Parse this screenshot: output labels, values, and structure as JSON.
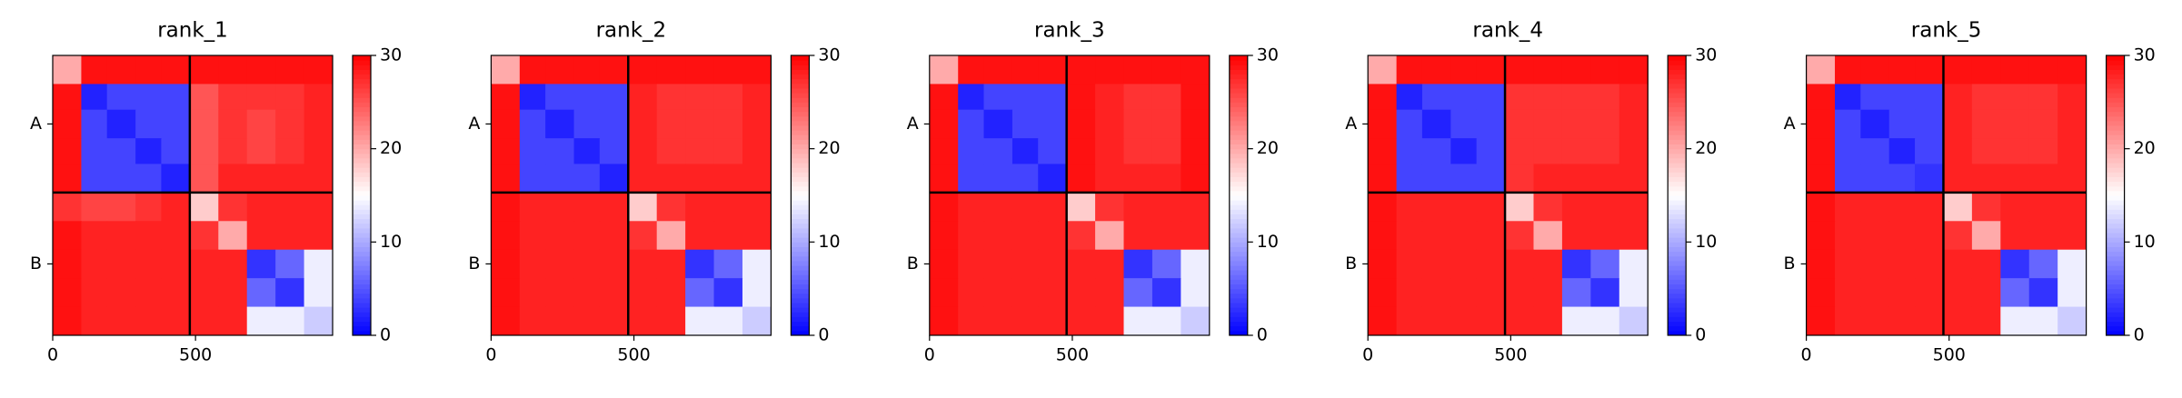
{
  "chart_data": [
    {
      "type": "heatmap",
      "title": "rank_1",
      "colormap": "bwr",
      "zlim": [
        0,
        30
      ],
      "cticks": [
        0,
        10,
        20,
        30
      ],
      "xlim": [
        0,
        980
      ],
      "xticks": [
        0,
        500
      ],
      "chains": [
        {
          "name": "A",
          "start": 0,
          "end": 480
        },
        {
          "name": "B",
          "start": 480,
          "end": 980
        }
      ],
      "edges": [
        0,
        100,
        190,
        290,
        380,
        480,
        580,
        680,
        780,
        880,
        980
      ],
      "z": [
        [
          20,
          29,
          29,
          29,
          29,
          29,
          29,
          29,
          29,
          29
        ],
        [
          29,
          2,
          4,
          4,
          4,
          25,
          27,
          27,
          27,
          28
        ],
        [
          29,
          4,
          2,
          4,
          4,
          25,
          27,
          26,
          27,
          28
        ],
        [
          29,
          4,
          4,
          2,
          4,
          25,
          27,
          26,
          27,
          28
        ],
        [
          29,
          4,
          4,
          4,
          2,
          25,
          28,
          28,
          28,
          28
        ],
        [
          27,
          26,
          26,
          27,
          28,
          18,
          27,
          28,
          28,
          28
        ],
        [
          29,
          28,
          28,
          28,
          28,
          27,
          20,
          28,
          28,
          28
        ],
        [
          29,
          28,
          28,
          28,
          28,
          28,
          28,
          3,
          6,
          14
        ],
        [
          29,
          28,
          28,
          28,
          28,
          28,
          28,
          6,
          3,
          14
        ],
        [
          29,
          28,
          28,
          28,
          28,
          28,
          28,
          14,
          14,
          12
        ]
      ]
    },
    {
      "type": "heatmap",
      "title": "rank_2",
      "colormap": "bwr",
      "zlim": [
        0,
        30
      ],
      "cticks": [
        0,
        10,
        20,
        30
      ],
      "xlim": [
        0,
        980
      ],
      "xticks": [
        0,
        500
      ],
      "chains": [
        {
          "name": "A",
          "start": 0,
          "end": 480
        },
        {
          "name": "B",
          "start": 480,
          "end": 980
        }
      ],
      "edges": [
        0,
        100,
        190,
        290,
        380,
        480,
        580,
        680,
        780,
        880,
        980
      ],
      "z": [
        [
          20,
          29,
          29,
          29,
          29,
          29,
          29,
          29,
          29,
          29
        ],
        [
          29,
          2,
          4,
          4,
          4,
          28,
          27,
          27,
          27,
          28
        ],
        [
          29,
          4,
          2,
          4,
          4,
          28,
          27,
          27,
          27,
          28
        ],
        [
          29,
          4,
          4,
          2,
          4,
          28,
          27,
          27,
          27,
          28
        ],
        [
          29,
          4,
          4,
          4,
          2,
          28,
          28,
          28,
          28,
          28
        ],
        [
          29,
          28,
          28,
          28,
          28,
          18,
          27,
          28,
          28,
          28
        ],
        [
          29,
          28,
          28,
          28,
          28,
          27,
          20,
          28,
          28,
          28
        ],
        [
          29,
          28,
          28,
          28,
          28,
          28,
          28,
          3,
          6,
          14
        ],
        [
          29,
          28,
          28,
          28,
          28,
          28,
          28,
          6,
          3,
          14
        ],
        [
          29,
          28,
          28,
          28,
          28,
          28,
          28,
          14,
          14,
          12
        ]
      ]
    },
    {
      "type": "heatmap",
      "title": "rank_3",
      "colormap": "bwr",
      "zlim": [
        0,
        30
      ],
      "cticks": [
        0,
        10,
        20,
        30
      ],
      "xlim": [
        0,
        980
      ],
      "xticks": [
        0,
        500
      ],
      "chains": [
        {
          "name": "A",
          "start": 0,
          "end": 480
        },
        {
          "name": "B",
          "start": 480,
          "end": 980
        }
      ],
      "edges": [
        0,
        100,
        190,
        290,
        380,
        480,
        580,
        680,
        780,
        880,
        980
      ],
      "z": [
        [
          20,
          29,
          29,
          29,
          29,
          29,
          29,
          29,
          29,
          29
        ],
        [
          29,
          2,
          4,
          4,
          4,
          29,
          28,
          27,
          27,
          29
        ],
        [
          29,
          4,
          2,
          4,
          4,
          29,
          28,
          27,
          27,
          29
        ],
        [
          29,
          4,
          4,
          2,
          4,
          29,
          28,
          27,
          27,
          29
        ],
        [
          29,
          4,
          4,
          4,
          2,
          29,
          28,
          28,
          28,
          29
        ],
        [
          29,
          28,
          28,
          28,
          28,
          18,
          27,
          28,
          28,
          28
        ],
        [
          29,
          28,
          28,
          28,
          28,
          27,
          20,
          28,
          28,
          28
        ],
        [
          29,
          28,
          28,
          28,
          28,
          28,
          28,
          3,
          6,
          14
        ],
        [
          29,
          28,
          28,
          28,
          28,
          28,
          28,
          6,
          3,
          14
        ],
        [
          29,
          28,
          28,
          28,
          28,
          28,
          28,
          14,
          14,
          12
        ]
      ]
    },
    {
      "type": "heatmap",
      "title": "rank_4",
      "colormap": "bwr",
      "zlim": [
        0,
        30
      ],
      "cticks": [
        0,
        10,
        20,
        30
      ],
      "xlim": [
        0,
        980
      ],
      "xticks": [
        0,
        500
      ],
      "chains": [
        {
          "name": "A",
          "start": 0,
          "end": 480
        },
        {
          "name": "B",
          "start": 480,
          "end": 980
        }
      ],
      "edges": [
        0,
        100,
        190,
        290,
        380,
        480,
        580,
        680,
        780,
        880,
        980
      ],
      "z": [
        [
          20,
          29,
          29,
          29,
          29,
          29,
          29,
          29,
          29,
          29
        ],
        [
          29,
          2,
          4,
          4,
          4,
          27,
          27,
          27,
          27,
          28
        ],
        [
          29,
          4,
          2,
          4,
          4,
          27,
          27,
          27,
          27,
          28
        ],
        [
          29,
          4,
          4,
          2,
          4,
          27,
          27,
          27,
          27,
          28
        ],
        [
          29,
          4,
          4,
          4,
          4,
          27,
          28,
          28,
          28,
          28
        ],
        [
          29,
          28,
          28,
          28,
          28,
          18,
          27,
          28,
          28,
          28
        ],
        [
          29,
          28,
          28,
          28,
          28,
          27,
          20,
          28,
          28,
          28
        ],
        [
          29,
          28,
          28,
          28,
          28,
          28,
          28,
          3,
          6,
          14
        ],
        [
          29,
          28,
          28,
          28,
          28,
          28,
          28,
          6,
          3,
          14
        ],
        [
          29,
          28,
          28,
          28,
          28,
          28,
          28,
          14,
          14,
          12
        ]
      ]
    },
    {
      "type": "heatmap",
      "title": "rank_5",
      "colormap": "bwr",
      "zlim": [
        0,
        30
      ],
      "cticks": [
        0,
        10,
        20,
        30
      ],
      "xlim": [
        0,
        980
      ],
      "xticks": [
        0,
        500
      ],
      "chains": [
        {
          "name": "A",
          "start": 0,
          "end": 480
        },
        {
          "name": "B",
          "start": 480,
          "end": 980
        }
      ],
      "edges": [
        0,
        100,
        190,
        290,
        380,
        480,
        580,
        680,
        780,
        880,
        980
      ],
      "z": [
        [
          20,
          29,
          29,
          29,
          29,
          29,
          29,
          29,
          29,
          29
        ],
        [
          29,
          2,
          4,
          4,
          4,
          28,
          27,
          27,
          27,
          28
        ],
        [
          29,
          4,
          2,
          4,
          4,
          28,
          27,
          27,
          27,
          28
        ],
        [
          29,
          4,
          4,
          2,
          4,
          28,
          27,
          27,
          27,
          28
        ],
        [
          29,
          4,
          4,
          4,
          3,
          28,
          28,
          28,
          28,
          28
        ],
        [
          29,
          28,
          28,
          28,
          28,
          18,
          27,
          28,
          28,
          28
        ],
        [
          29,
          28,
          28,
          28,
          28,
          27,
          20,
          28,
          28,
          28
        ],
        [
          29,
          28,
          28,
          28,
          28,
          28,
          28,
          3,
          6,
          14
        ],
        [
          29,
          28,
          28,
          28,
          28,
          28,
          28,
          6,
          3,
          14
        ],
        [
          29,
          28,
          28,
          28,
          28,
          28,
          28,
          14,
          14,
          12
        ]
      ]
    }
  ]
}
